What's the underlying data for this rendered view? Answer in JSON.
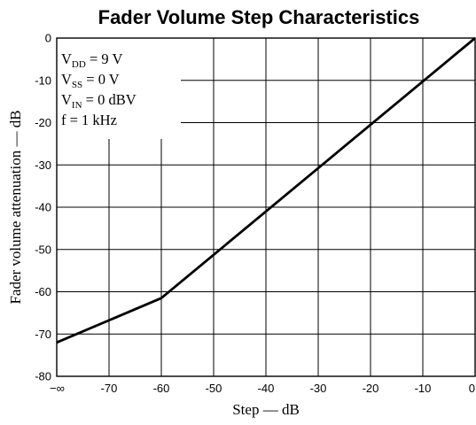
{
  "chart_data": {
    "type": "line",
    "title": "Fader Volume Step Characteristics",
    "xlabel": "Step — dB",
    "ylabel": "Fader volume attenuation — dB",
    "x_tick_labels": [
      "−∞",
      "-70",
      "-60",
      "-50",
      "-40",
      "-30",
      "-20",
      "-10",
      "0"
    ],
    "x_tick_values": [
      -80,
      -70,
      -60,
      -50,
      -40,
      -30,
      -20,
      -10,
      0
    ],
    "y_tick_labels": [
      "0",
      "-10",
      "-20",
      "-30",
      "-40",
      "-50",
      "-60",
      "-70",
      "-80"
    ],
    "y_tick_values": [
      0,
      -10,
      -20,
      -30,
      -40,
      -50,
      -60,
      -70,
      -80
    ],
    "xlim": [
      -80,
      0
    ],
    "ylim": [
      -80,
      0
    ],
    "grid": true,
    "series": [
      {
        "x": [
          -80,
          -60,
          0
        ],
        "y": [
          -72,
          -61.5,
          0
        ]
      }
    ],
    "conditions": [
      {
        "main": "V",
        "sub": "DD",
        "rest": " = 9 V"
      },
      {
        "main": "V",
        "sub": "SS",
        "rest": " = 0 V"
      },
      {
        "main": "V",
        "sub": "IN",
        "rest": " = 0 dBV"
      },
      {
        "main": "f = 1 kHz",
        "sub": "",
        "rest": ""
      }
    ]
  }
}
